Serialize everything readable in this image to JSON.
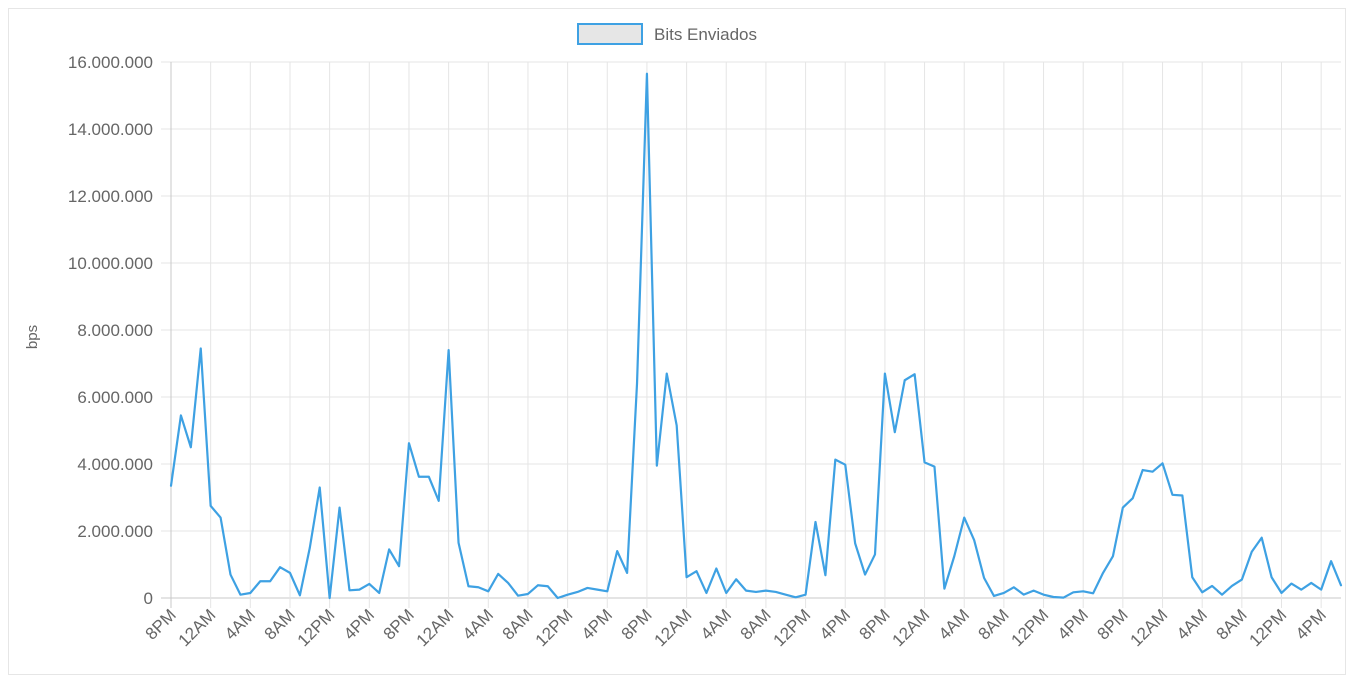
{
  "chart_data": {
    "type": "line",
    "title": "",
    "xlabel": "",
    "ylabel": "bps",
    "ylim": [
      0,
      16000000
    ],
    "y_ticks": [
      "0",
      "2.000.000",
      "4.000.000",
      "6.000.000",
      "8.000.000",
      "10.000.000",
      "12.000.000",
      "14.000.000",
      "16.000.000"
    ],
    "x_tick_labels": [
      "8PM",
      "12AM",
      "4AM",
      "8AM",
      "12PM",
      "4PM",
      "8PM",
      "12AM",
      "4AM",
      "8AM",
      "12PM",
      "4PM",
      "8PM",
      "12AM",
      "4AM",
      "8AM",
      "12PM",
      "4PM",
      "8PM",
      "12AM",
      "4AM",
      "8AM",
      "12PM",
      "4PM",
      "8PM",
      "12AM",
      "4AM",
      "8AM",
      "12PM",
      "4PM"
    ],
    "x_tick_interval": 4,
    "grid": true,
    "legend_position": "top",
    "series_color": "#3ea1e3",
    "legend_box_fill": "#e6e6e6",
    "series": [
      {
        "name": "Bits Enviados",
        "values": [
          3350000,
          5450000,
          4500000,
          7450000,
          2750000,
          2400000,
          700000,
          100000,
          150000,
          500000,
          500000,
          920000,
          750000,
          80000,
          1500000,
          3300000,
          0,
          2700000,
          230000,
          250000,
          420000,
          150000,
          1450000,
          950000,
          4620000,
          3620000,
          3620000,
          2900000,
          7400000,
          1650000,
          350000,
          320000,
          200000,
          720000,
          450000,
          70000,
          120000,
          380000,
          350000,
          0,
          100000,
          180000,
          300000,
          250000,
          200000,
          1400000,
          750000,
          6400000,
          15650000,
          3950000,
          6700000,
          5150000,
          620000,
          800000,
          150000,
          880000,
          150000,
          560000,
          220000,
          180000,
          220000,
          180000,
          100000,
          20000,
          100000,
          2270000,
          680000,
          4130000,
          3980000,
          1630000,
          700000,
          1300000,
          6700000,
          4950000,
          6500000,
          6680000,
          4050000,
          3920000,
          280000,
          1250000,
          2400000,
          1730000,
          600000,
          60000,
          150000,
          320000,
          100000,
          220000,
          100000,
          30000,
          10000,
          170000,
          200000,
          140000,
          750000,
          1250000,
          2700000,
          2980000,
          3820000,
          3770000,
          4020000,
          3080000,
          3060000,
          620000,
          170000,
          360000,
          100000,
          360000,
          550000,
          1380000,
          1800000,
          620000,
          150000,
          430000,
          250000,
          450000,
          250000,
          1100000,
          380000
        ]
      }
    ]
  }
}
